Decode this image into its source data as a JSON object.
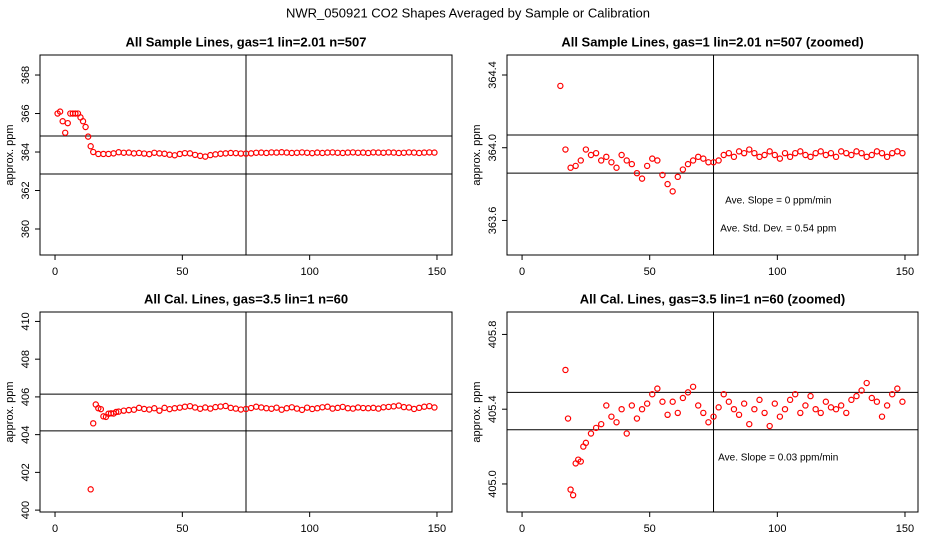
{
  "title": "NWR_050921  CO2 Shapes Averaged by Sample or Calibration",
  "chart_data": [
    {
      "type": "scatter",
      "title": "All Sample Lines, gas=1 lin=2.01 n=507",
      "y_label": "approx. ppm",
      "color": "#ff0000",
      "x": [
        1,
        2,
        3,
        4,
        5,
        6,
        7,
        8,
        9,
        10,
        11,
        12,
        13,
        14,
        15,
        17,
        19,
        21,
        23,
        25,
        27,
        29,
        31,
        33,
        35,
        37,
        39,
        41,
        43,
        45,
        47,
        49,
        51,
        53,
        55,
        57,
        59,
        61,
        63,
        65,
        67,
        69,
        71,
        73,
        75,
        77,
        79,
        81,
        83,
        85,
        87,
        89,
        91,
        93,
        95,
        97,
        99,
        101,
        103,
        105,
        107,
        109,
        111,
        113,
        115,
        117,
        119,
        121,
        123,
        125,
        127,
        129,
        131,
        133,
        135,
        137,
        139,
        141,
        143,
        145,
        147,
        149
      ],
      "values": [
        366.0,
        366.1,
        365.6,
        365.0,
        365.5,
        366.0,
        366.0,
        366.0,
        366.0,
        365.8,
        365.6,
        365.3,
        364.8,
        364.3,
        364.0,
        363.9,
        363.9,
        363.9,
        363.93,
        363.99,
        363.96,
        363.97,
        363.93,
        363.95,
        363.92,
        363.89,
        363.96,
        363.93,
        363.91,
        363.86,
        363.83,
        363.9,
        363.94,
        363.93,
        363.85,
        363.8,
        363.76,
        363.84,
        363.88,
        363.91,
        363.93,
        363.95,
        363.94,
        363.92,
        363.92,
        363.93,
        363.96,
        363.97,
        363.95,
        363.98,
        363.97,
        363.99,
        363.97,
        363.95,
        363.96,
        363.98,
        363.96,
        363.94,
        363.97,
        363.95,
        363.97,
        363.98,
        363.96,
        363.95,
        363.97,
        363.98,
        363.96,
        363.97,
        363.95,
        363.98,
        363.97,
        363.96,
        363.98,
        363.97,
        363.95,
        363.96,
        363.98,
        363.97,
        363.95,
        363.97,
        363.98,
        363.97
      ],
      "hlines": [
        364.83,
        362.86
      ],
      "vlines": [
        75
      ],
      "xlim": [
        -5.9,
        155.9
      ],
      "xticks": [
        0,
        50,
        100,
        150
      ],
      "ylim": [
        358.65,
        369.04
      ],
      "yticks": [
        360,
        362,
        364,
        366,
        368
      ]
    },
    {
      "type": "scatter",
      "title": "All Sample Lines, gas=1 lin=2.01 n=507 (zoomed)",
      "y_label": "approx. ppm",
      "color": "#ff0000",
      "x": [
        15,
        17,
        19,
        21,
        23,
        25,
        27,
        29,
        31,
        33,
        35,
        37,
        39,
        41,
        43,
        45,
        47,
        49,
        51,
        53,
        55,
        57,
        59,
        61,
        63,
        65,
        67,
        69,
        71,
        73,
        75,
        77,
        79,
        81,
        83,
        85,
        87,
        89,
        91,
        93,
        95,
        97,
        99,
        101,
        103,
        105,
        107,
        109,
        111,
        113,
        115,
        117,
        119,
        121,
        123,
        125,
        127,
        129,
        131,
        133,
        135,
        137,
        139,
        141,
        143,
        145,
        147,
        149
      ],
      "values": [
        364.34,
        363.99,
        363.89,
        363.9,
        363.93,
        363.99,
        363.96,
        363.97,
        363.93,
        363.95,
        363.92,
        363.89,
        363.96,
        363.93,
        363.91,
        363.86,
        363.83,
        363.9,
        363.94,
        363.93,
        363.85,
        363.8,
        363.76,
        363.84,
        363.88,
        363.91,
        363.93,
        363.95,
        363.94,
        363.92,
        363.92,
        363.93,
        363.96,
        363.97,
        363.95,
        363.98,
        363.97,
        363.99,
        363.97,
        363.95,
        363.96,
        363.98,
        363.96,
        363.94,
        363.97,
        363.95,
        363.97,
        363.98,
        363.96,
        363.95,
        363.97,
        363.98,
        363.96,
        363.97,
        363.95,
        363.98,
        363.97,
        363.96,
        363.98,
        363.97,
        363.95,
        363.96,
        363.98,
        363.97,
        363.95,
        363.97,
        363.98,
        363.97
      ],
      "hlines": [
        364.07,
        363.86
      ],
      "vlines": [
        75
      ],
      "annotations": [
        "Ave. Slope =  0  ppm/min",
        "Ave. Std. Dev. =  0.54  ppm"
      ],
      "xlim": [
        -5.9,
        155.1
      ],
      "xticks": [
        0,
        50,
        100,
        150
      ],
      "ylim": [
        363.41,
        364.51
      ],
      "yticks": [
        363.6,
        {
          "value": 364,
          "label": "364.0"
        },
        364.4
      ]
    },
    {
      "type": "scatter",
      "title": "All Cal. Lines, gas=3.5 lin=1 n=60",
      "y_label": "approx. ppm",
      "color": "#ff0000",
      "x": [
        14,
        15,
        16,
        17,
        18,
        19,
        20,
        21,
        22,
        23,
        24,
        25,
        27,
        29,
        31,
        33,
        35,
        37,
        39,
        41,
        43,
        45,
        47,
        49,
        51,
        53,
        55,
        57,
        59,
        61,
        63,
        65,
        67,
        69,
        71,
        73,
        75,
        77,
        79,
        81,
        83,
        85,
        87,
        89,
        91,
        93,
        95,
        97,
        99,
        101,
        103,
        105,
        107,
        109,
        111,
        113,
        115,
        117,
        119,
        121,
        123,
        125,
        127,
        129,
        131,
        133,
        135,
        137,
        139,
        141,
        143,
        145,
        147,
        149
      ],
      "values": [
        401.1,
        404.6,
        405.6,
        405.4,
        405.35,
        404.97,
        404.94,
        405.11,
        405.13,
        405.12,
        405.2,
        405.22,
        405.27,
        405.3,
        405.32,
        405.42,
        405.36,
        405.33,
        405.4,
        405.27,
        405.42,
        405.35,
        405.4,
        405.43,
        405.48,
        405.51,
        405.44,
        405.37,
        405.44,
        405.38,
        405.46,
        405.49,
        405.52,
        405.42,
        405.38,
        405.33,
        405.36,
        405.41,
        405.48,
        405.44,
        405.4,
        405.37,
        405.43,
        405.32,
        405.4,
        405.45,
        405.38,
        405.31,
        405.43,
        405.36,
        405.4,
        405.45,
        405.48,
        405.38,
        405.42,
        405.47,
        405.4,
        405.38,
        405.44,
        405.41,
        405.4,
        405.42,
        405.38,
        405.45,
        405.47,
        405.5,
        405.54,
        405.46,
        405.44,
        405.36,
        405.42,
        405.48,
        405.51,
        405.44
      ],
      "hlines": [
        406.15,
        404.2
      ],
      "vlines": [
        75
      ],
      "xlim": [
        -5.9,
        155.9
      ],
      "xticks": [
        0,
        50,
        100,
        150
      ],
      "ylim": [
        399.9,
        410.5
      ],
      "yticks": [
        400,
        402,
        404,
        406,
        408,
        410
      ]
    },
    {
      "type": "scatter",
      "title": "All Cal. Lines, gas=3.5 lin=1 n=60 (zoomed)",
      "y_label": "approx. ppm",
      "color": "#ff0000",
      "x": [
        17,
        18,
        19,
        20,
        21,
        22,
        23,
        24,
        25,
        27,
        29,
        31,
        33,
        35,
        37,
        39,
        41,
        43,
        45,
        47,
        49,
        51,
        53,
        55,
        57,
        59,
        61,
        63,
        65,
        67,
        69,
        71,
        73,
        75,
        77,
        79,
        81,
        83,
        85,
        87,
        89,
        91,
        93,
        95,
        97,
        99,
        101,
        103,
        105,
        107,
        109,
        111,
        113,
        115,
        117,
        119,
        121,
        123,
        125,
        127,
        129,
        131,
        133,
        135,
        137,
        139,
        141,
        143,
        145,
        147,
        149
      ],
      "values": [
        405.61,
        405.35,
        404.97,
        404.94,
        405.11,
        405.13,
        405.12,
        405.2,
        405.22,
        405.27,
        405.3,
        405.32,
        405.42,
        405.36,
        405.33,
        405.4,
        405.27,
        405.42,
        405.35,
        405.4,
        405.43,
        405.48,
        405.51,
        405.44,
        405.37,
        405.44,
        405.38,
        405.46,
        405.49,
        405.52,
        405.42,
        405.38,
        405.33,
        405.36,
        405.41,
        405.48,
        405.44,
        405.4,
        405.37,
        405.43,
        405.32,
        405.4,
        405.45,
        405.38,
        405.31,
        405.43,
        405.36,
        405.4,
        405.45,
        405.48,
        405.38,
        405.42,
        405.47,
        405.4,
        405.38,
        405.44,
        405.41,
        405.4,
        405.42,
        405.38,
        405.45,
        405.47,
        405.5,
        405.54,
        405.46,
        405.44,
        405.36,
        405.42,
        405.48,
        405.51,
        405.44
      ],
      "hlines": [
        405.49,
        405.29
      ],
      "vlines": [
        75
      ],
      "annotations": [
        "Ave. Slope =  0.03  ppm/min"
      ],
      "xlim": [
        -5.9,
        155.1
      ],
      "xticks": [
        0,
        50,
        100,
        150
      ],
      "ylim": [
        404.85,
        405.92
      ],
      "yticks": [
        {
          "value": 405,
          "label": "405.0"
        },
        405.4,
        405.8
      ]
    }
  ]
}
